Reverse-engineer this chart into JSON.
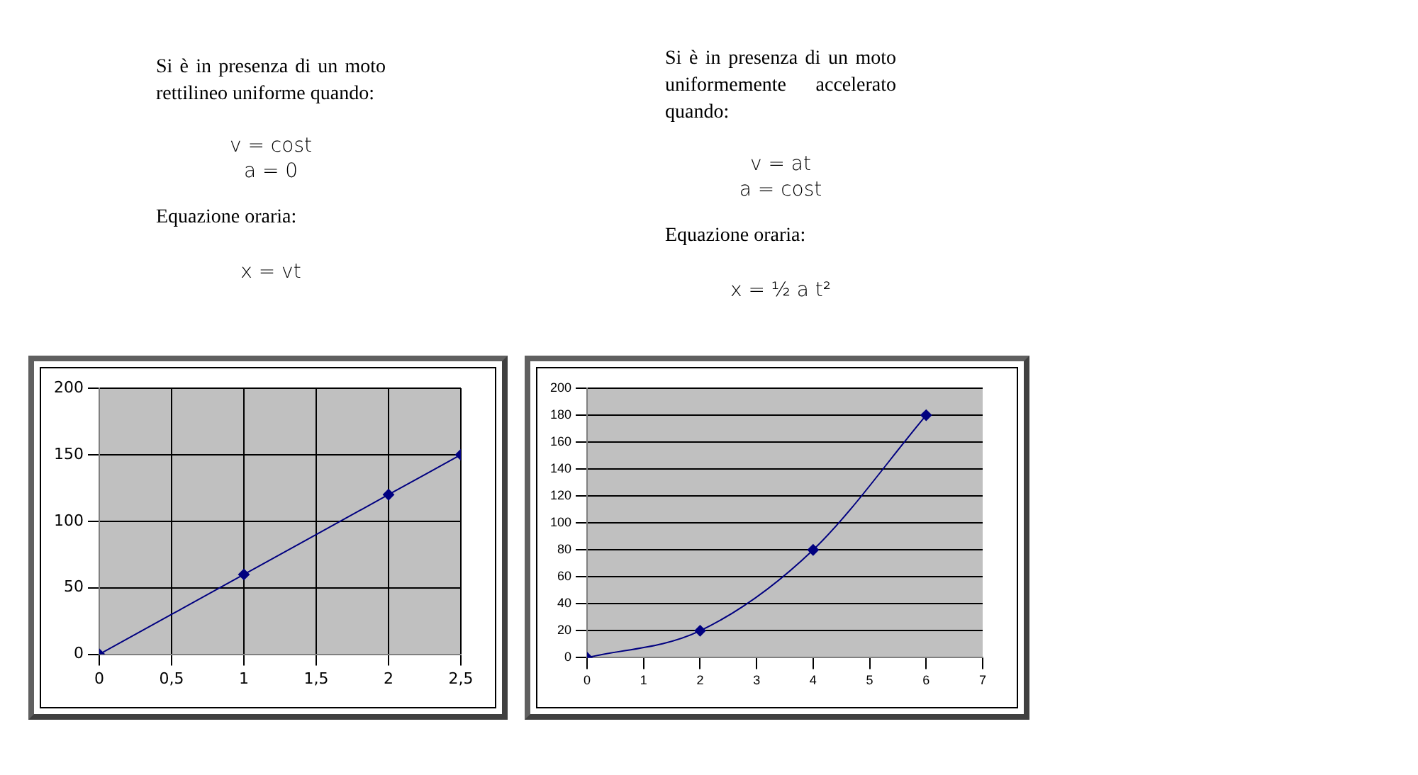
{
  "chart_data": [
    {
      "type": "line",
      "annotations": [
        "Si è in presenza di un moto rettilineo uniforme quando:",
        "v = cost",
        "a = 0",
        "Equazione oraria:",
        "x = vt"
      ],
      "x": [
        0,
        1,
        2,
        2.5
      ],
      "series": [
        {
          "color": "#000080",
          "values": [
            0,
            60,
            120,
            150
          ]
        }
      ],
      "xlim": [
        0,
        2.5
      ],
      "xticks": [
        0,
        {
          "value": 0.5,
          "label": "0,5"
        },
        1,
        {
          "value": 1.5,
          "label": "1,5"
        },
        2,
        {
          "value": 2.5,
          "label": "2,5"
        }
      ],
      "ylim": [
        0,
        200
      ],
      "yticks": [
        0,
        50,
        100,
        150,
        200
      ],
      "grid": true,
      "marker": "diamond",
      "legend": false
    },
    {
      "type": "line",
      "annotations": [
        "Si è in presenza di un moto uniformemente accelerato quando:",
        "v = at",
        "a = cost",
        "Equazione oraria:",
        "x = ½ a t²"
      ],
      "x": [
        0,
        2,
        4,
        6
      ],
      "series": [
        {
          "color": "#000080",
          "values": [
            0,
            20,
            80,
            180
          ]
        }
      ],
      "xlim": [
        0,
        7
      ],
      "xticks": [
        0,
        1,
        2,
        3,
        4,
        5,
        6,
        7
      ],
      "ylim": [
        0,
        200
      ],
      "yticks": [
        0,
        20,
        40,
        60,
        80,
        100,
        120,
        140,
        160,
        180,
        200
      ],
      "grid": "y",
      "marker": "diamond",
      "legend": false
    }
  ]
}
